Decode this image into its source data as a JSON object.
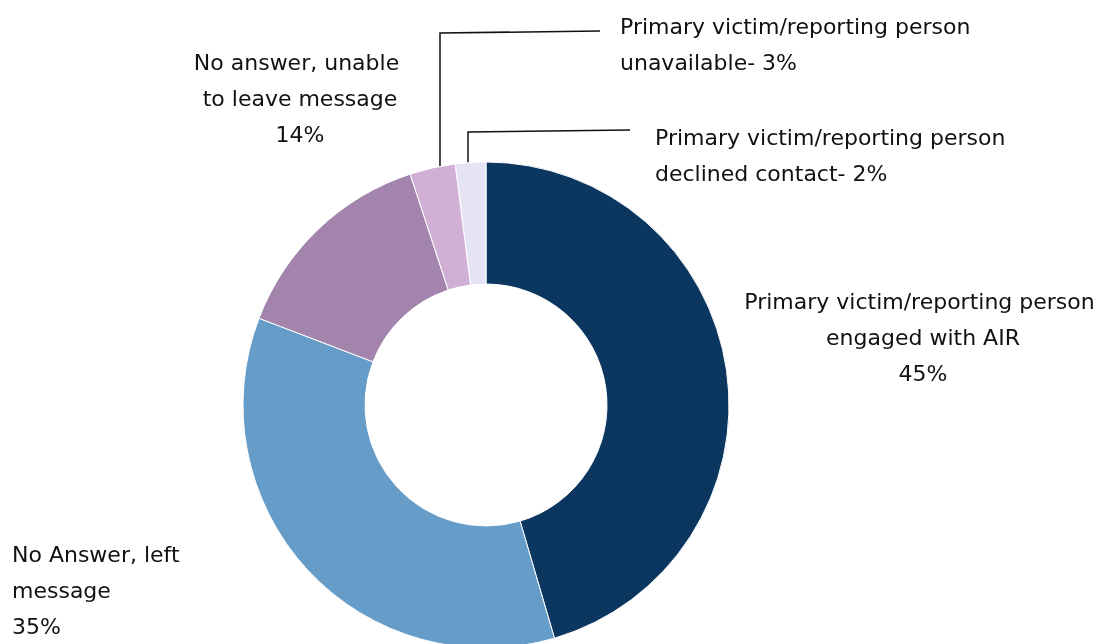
{
  "chart_data": {
    "type": "donut",
    "categories": [
      "Primary victim/reporting person engaged with AIR",
      "No Answer, left message",
      "No answer, unable to leave message",
      "Primary victim/reporting person unavailable-",
      "Primary victim/reporting person declined contact-"
    ],
    "values": [
      45,
      35,
      14,
      3,
      2
    ],
    "value_labels": [
      "45%",
      "35%",
      "14%",
      "3%",
      "2%"
    ],
    "colors": [
      "#0a3660",
      "#659cc8",
      "#a384ad",
      "#d2b0d6",
      "#e4e4f5"
    ],
    "legend": false
  }
}
